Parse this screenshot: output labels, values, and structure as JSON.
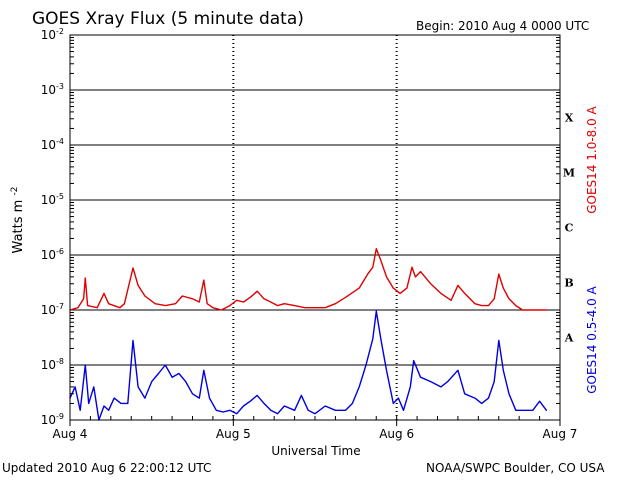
{
  "chart_data": {
    "type": "line",
    "title": "GOES Xray Flux (5 minute data)",
    "begin_label": "Begin:  2010 Aug 4 0000 UTC",
    "updated_label": "Updated 2010 Aug  6 22:00:12 UTC",
    "credit_label": "NOAA/SWPC Boulder, CO USA",
    "xlabel": "Universal Time",
    "ylabel": "Watts m",
    "ylabel_superscript": "-2",
    "y_scale": "log",
    "ylim": [
      1e-09,
      0.01
    ],
    "xlim": [
      "2010-08-04T00:00Z",
      "2010-08-07T00:00Z"
    ],
    "x_ticks": [
      {
        "label": "Aug 4",
        "time": "2010-08-04T00:00Z"
      },
      {
        "label": "Aug 5",
        "time": "2010-08-05T00:00Z"
      },
      {
        "label": "Aug 6",
        "time": "2010-08-06T00:00Z"
      },
      {
        "label": "Aug 7",
        "time": "2010-08-07T00:00Z"
      }
    ],
    "y_ticks": [
      {
        "base": "10",
        "exponent": "-9",
        "value": 1e-09
      },
      {
        "base": "10",
        "exponent": "-8",
        "value": 1e-08
      },
      {
        "base": "10",
        "exponent": "-7",
        "value": 1e-07
      },
      {
        "base": "10",
        "exponent": "-6",
        "value": 1e-06
      },
      {
        "base": "10",
        "exponent": "-5",
        "value": 1e-05
      },
      {
        "base": "10",
        "exponent": "-4",
        "value": 0.0001
      },
      {
        "base": "10",
        "exponent": "-3",
        "value": 0.001
      },
      {
        "base": "10",
        "exponent": "-2",
        "value": 0.01
      }
    ],
    "flare_classes": [
      {
        "label": "A",
        "min": 1e-08
      },
      {
        "label": "B",
        "min": 1e-07
      },
      {
        "label": "C",
        "min": 1e-06
      },
      {
        "label": "M",
        "min": 1e-05
      },
      {
        "label": "X",
        "min": 0.0001
      }
    ],
    "grid": true,
    "series": [
      {
        "name": "GOES14 1.0-8.0 A",
        "color": "#e00000",
        "points": [
          [
            "2010-08-04T00:00Z",
            1e-07
          ],
          [
            "2010-08-04T01:10Z",
            1.1e-07
          ],
          [
            "2010-08-04T02:00Z",
            1.6e-07
          ],
          [
            "2010-08-04T02:15Z",
            3.8e-07
          ],
          [
            "2010-08-04T02:35Z",
            1.2e-07
          ],
          [
            "2010-08-04T04:00Z",
            1.1e-07
          ],
          [
            "2010-08-04T05:00Z",
            2e-07
          ],
          [
            "2010-08-04T05:40Z",
            1.3e-07
          ],
          [
            "2010-08-04T07:20Z",
            1.1e-07
          ],
          [
            "2010-08-04T08:00Z",
            1.3e-07
          ],
          [
            "2010-08-04T09:15Z",
            5.8e-07
          ],
          [
            "2010-08-04T10:00Z",
            2.8e-07
          ],
          [
            "2010-08-04T11:00Z",
            1.8e-07
          ],
          [
            "2010-08-04T12:30Z",
            1.3e-07
          ],
          [
            "2010-08-04T14:00Z",
            1.2e-07
          ],
          [
            "2010-08-04T15:30Z",
            1.3e-07
          ],
          [
            "2010-08-04T16:30Z",
            1.8e-07
          ],
          [
            "2010-08-04T18:00Z",
            1.6e-07
          ],
          [
            "2010-08-04T19:00Z",
            1.4e-07
          ],
          [
            "2010-08-04T19:40Z",
            3.5e-07
          ],
          [
            "2010-08-04T20:10Z",
            1.3e-07
          ],
          [
            "2010-08-04T21:00Z",
            1.1e-07
          ],
          [
            "2010-08-04T22:15Z",
            1e-07
          ],
          [
            "2010-08-04T23:30Z",
            1.2e-07
          ],
          [
            "2010-08-05T00:30Z",
            1.5e-07
          ],
          [
            "2010-08-05T01:30Z",
            1.4e-07
          ],
          [
            "2010-08-05T02:30Z",
            1.7e-07
          ],
          [
            "2010-08-05T03:30Z",
            2.2e-07
          ],
          [
            "2010-08-05T04:30Z",
            1.6e-07
          ],
          [
            "2010-08-05T05:30Z",
            1.4e-07
          ],
          [
            "2010-08-05T06:30Z",
            1.2e-07
          ],
          [
            "2010-08-05T07:30Z",
            1.3e-07
          ],
          [
            "2010-08-05T09:00Z",
            1.2e-07
          ],
          [
            "2010-08-05T10:30Z",
            1.1e-07
          ],
          [
            "2010-08-05T12:00Z",
            1.1e-07
          ],
          [
            "2010-08-05T13:30Z",
            1.1e-07
          ],
          [
            "2010-08-05T15:00Z",
            1.3e-07
          ],
          [
            "2010-08-05T16:30Z",
            1.7e-07
          ],
          [
            "2010-08-05T18:30Z",
            2.5e-07
          ],
          [
            "2010-08-05T19:45Z",
            4.5e-07
          ],
          [
            "2010-08-05T20:30Z",
            6e-07
          ],
          [
            "2010-08-05T21:00Z",
            1.3e-06
          ],
          [
            "2010-08-05T21:40Z",
            8e-07
          ],
          [
            "2010-08-05T22:30Z",
            4e-07
          ],
          [
            "2010-08-05T23:30Z",
            2.5e-07
          ],
          [
            "2010-08-06T00:30Z",
            2e-07
          ],
          [
            "2010-08-06T01:30Z",
            2.5e-07
          ],
          [
            "2010-08-06T02:15Z",
            6e-07
          ],
          [
            "2010-08-06T02:45Z",
            4e-07
          ],
          [
            "2010-08-06T03:30Z",
            5e-07
          ],
          [
            "2010-08-06T05:00Z",
            3e-07
          ],
          [
            "2010-08-06T06:30Z",
            2e-07
          ],
          [
            "2010-08-06T08:00Z",
            1.5e-07
          ],
          [
            "2010-08-06T09:00Z",
            2.8e-07
          ],
          [
            "2010-08-06T10:00Z",
            2e-07
          ],
          [
            "2010-08-06T11:30Z",
            1.3e-07
          ],
          [
            "2010-08-06T12:30Z",
            1.2e-07
          ],
          [
            "2010-08-06T13:30Z",
            1.2e-07
          ],
          [
            "2010-08-06T14:20Z",
            1.6e-07
          ],
          [
            "2010-08-06T15:00Z",
            4.5e-07
          ],
          [
            "2010-08-06T15:40Z",
            2.5e-07
          ],
          [
            "2010-08-06T16:30Z",
            1.6e-07
          ],
          [
            "2010-08-06T17:30Z",
            1.2e-07
          ],
          [
            "2010-08-06T18:30Z",
            1e-07
          ],
          [
            "2010-08-06T20:00Z",
            1e-07
          ],
          [
            "2010-08-06T21:30Z",
            1e-07
          ],
          [
            "2010-08-06T22:00Z",
            1e-07
          ]
        ]
      },
      {
        "name": "GOES14 0.5-4.0 A",
        "color": "#0000e0",
        "points": [
          [
            "2010-08-04T00:00Z",
            2.5e-09
          ],
          [
            "2010-08-04T00:45Z",
            4e-09
          ],
          [
            "2010-08-04T01:30Z",
            1.5e-09
          ],
          [
            "2010-08-04T02:15Z",
            1e-08
          ],
          [
            "2010-08-04T02:45Z",
            2e-09
          ],
          [
            "2010-08-04T03:30Z",
            4e-09
          ],
          [
            "2010-08-04T04:15Z",
            1e-09
          ],
          [
            "2010-08-04T05:00Z",
            1.8e-09
          ],
          [
            "2010-08-04T05:40Z",
            1.5e-09
          ],
          [
            "2010-08-04T06:30Z",
            2.5e-09
          ],
          [
            "2010-08-04T07:30Z",
            2e-09
          ],
          [
            "2010-08-04T08:30Z",
            2e-09
          ],
          [
            "2010-08-04T09:15Z",
            2.8e-08
          ],
          [
            "2010-08-04T10:00Z",
            4e-09
          ],
          [
            "2010-08-04T11:00Z",
            2.5e-09
          ],
          [
            "2010-08-04T12:00Z",
            5e-09
          ],
          [
            "2010-08-04T13:00Z",
            7e-09
          ],
          [
            "2010-08-04T14:00Z",
            1e-08
          ],
          [
            "2010-08-04T15:00Z",
            6e-09
          ],
          [
            "2010-08-04T16:00Z",
            7e-09
          ],
          [
            "2010-08-04T17:00Z",
            5e-09
          ],
          [
            "2010-08-04T18:00Z",
            3e-09
          ],
          [
            "2010-08-04T19:00Z",
            2.5e-09
          ],
          [
            "2010-08-04T19:40Z",
            8e-09
          ],
          [
            "2010-08-04T20:30Z",
            2.5e-09
          ],
          [
            "2010-08-04T21:30Z",
            1.5e-09
          ],
          [
            "2010-08-04T22:30Z",
            1.4e-09
          ],
          [
            "2010-08-04T23:30Z",
            1.5e-09
          ],
          [
            "2010-08-05T00:30Z",
            1.3e-09
          ],
          [
            "2010-08-05T01:30Z",
            1.8e-09
          ],
          [
            "2010-08-05T02:30Z",
            2.2e-09
          ],
          [
            "2010-08-05T03:30Z",
            2.8e-09
          ],
          [
            "2010-08-05T04:30Z",
            2e-09
          ],
          [
            "2010-08-05T05:30Z",
            1.5e-09
          ],
          [
            "2010-08-05T06:30Z",
            1.3e-09
          ],
          [
            "2010-08-05T07:30Z",
            1.8e-09
          ],
          [
            "2010-08-05T09:00Z",
            1.5e-09
          ],
          [
            "2010-08-05T10:00Z",
            2.8e-09
          ],
          [
            "2010-08-05T11:00Z",
            1.5e-09
          ],
          [
            "2010-08-05T12:00Z",
            1.3e-09
          ],
          [
            "2010-08-05T13:30Z",
            1.8e-09
          ],
          [
            "2010-08-05T15:00Z",
            1.5e-09
          ],
          [
            "2010-08-05T16:30Z",
            1.5e-09
          ],
          [
            "2010-08-05T17:30Z",
            2e-09
          ],
          [
            "2010-08-05T18:30Z",
            4e-09
          ],
          [
            "2010-08-05T19:30Z",
            1e-08
          ],
          [
            "2010-08-05T20:30Z",
            3e-08
          ],
          [
            "2010-08-05T21:00Z",
            9.5e-08
          ],
          [
            "2010-08-05T21:40Z",
            3e-08
          ],
          [
            "2010-08-05T22:30Z",
            8e-09
          ],
          [
            "2010-08-05T23:30Z",
            2e-09
          ],
          [
            "2010-08-06T00:15Z",
            2.5e-09
          ],
          [
            "2010-08-06T01:00Z",
            1.5e-09
          ],
          [
            "2010-08-06T02:00Z",
            4e-09
          ],
          [
            "2010-08-06T02:30Z",
            1.2e-08
          ],
          [
            "2010-08-06T03:30Z",
            6e-09
          ],
          [
            "2010-08-06T05:00Z",
            5e-09
          ],
          [
            "2010-08-06T06:30Z",
            4e-09
          ],
          [
            "2010-08-06T07:30Z",
            5e-09
          ],
          [
            "2010-08-06T09:00Z",
            8e-09
          ],
          [
            "2010-08-06T10:00Z",
            3e-09
          ],
          [
            "2010-08-06T11:30Z",
            2.5e-09
          ],
          [
            "2010-08-06T12:30Z",
            2e-09
          ],
          [
            "2010-08-06T13:30Z",
            2.5e-09
          ],
          [
            "2010-08-06T14:20Z",
            5e-09
          ],
          [
            "2010-08-06T15:00Z",
            2.8e-08
          ],
          [
            "2010-08-06T15:40Z",
            8e-09
          ],
          [
            "2010-08-06T16:30Z",
            3e-09
          ],
          [
            "2010-08-06T17:30Z",
            1.5e-09
          ],
          [
            "2010-08-06T18:30Z",
            1.5e-09
          ],
          [
            "2010-08-06T20:00Z",
            1.5e-09
          ],
          [
            "2010-08-06T21:00Z",
            2.2e-09
          ],
          [
            "2010-08-06T22:00Z",
            1.5e-09
          ]
        ]
      }
    ]
  }
}
